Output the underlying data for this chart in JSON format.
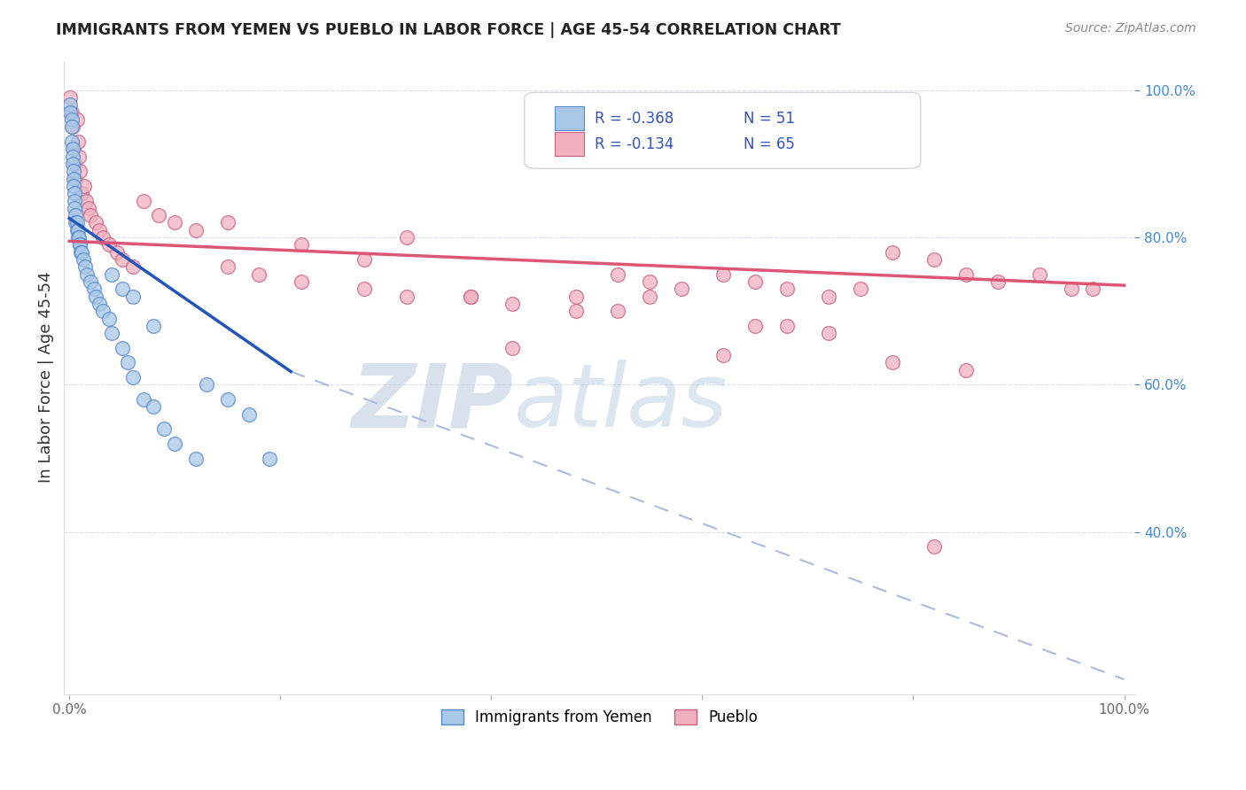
{
  "title": "IMMIGRANTS FROM YEMEN VS PUEBLO IN LABOR FORCE | AGE 45-54 CORRELATION CHART",
  "source": "Source: ZipAtlas.com",
  "ylabel": "In Labor Force | Age 45-54",
  "xlim": [
    -0.005,
    1.01
  ],
  "ylim": [
    0.18,
    1.04
  ],
  "xtick_positions": [
    0.0,
    0.2,
    0.4,
    0.6,
    0.8,
    1.0
  ],
  "xticklabels": [
    "0.0%",
    "",
    "",
    "",
    "",
    "100.0%"
  ],
  "ytick_right_positions": [
    0.4,
    0.6,
    0.8,
    1.0
  ],
  "ytick_right_labels": [
    "40.0%",
    "60.0%",
    "80.0%",
    "100.0%"
  ],
  "legend_line1": "R = -0.368   N = 51",
  "legend_line2": "R = -0.134   N = 65",
  "color_yemen_fill": "#a8c8e8",
  "color_yemen_edge": "#5588cc",
  "color_pueblo_fill": "#f0b0c0",
  "color_pueblo_edge": "#cc6080",
  "color_yemen_line": "#2255bb",
  "color_pueblo_line": "#dd5577",
  "color_dashed": "#aabbdd",
  "background_color": "#ffffff",
  "watermark_text": "ZIPatlas",
  "watermark_color": "#ccd8e8",
  "grid_color": "#ddddee",
  "yemen_x": [
    0.001,
    0.001,
    0.002,
    0.002,
    0.002,
    0.003,
    0.003,
    0.003,
    0.004,
    0.004,
    0.004,
    0.005,
    0.005,
    0.005,
    0.006,
    0.006,
    0.007,
    0.007,
    0.008,
    0.008,
    0.009,
    0.01,
    0.01,
    0.011,
    0.012,
    0.013,
    0.015,
    0.017,
    0.02,
    0.023,
    0.025,
    0.028,
    0.032,
    0.038,
    0.04,
    0.05,
    0.055,
    0.06,
    0.07,
    0.08,
    0.09,
    0.1,
    0.12,
    0.13,
    0.15,
    0.17,
    0.19,
    0.04,
    0.05,
    0.06,
    0.08
  ],
  "yemen_y": [
    0.98,
    0.97,
    0.96,
    0.95,
    0.93,
    0.92,
    0.91,
    0.9,
    0.89,
    0.88,
    0.87,
    0.86,
    0.85,
    0.84,
    0.83,
    0.82,
    0.82,
    0.81,
    0.81,
    0.8,
    0.8,
    0.79,
    0.79,
    0.78,
    0.78,
    0.77,
    0.76,
    0.75,
    0.74,
    0.73,
    0.72,
    0.71,
    0.7,
    0.69,
    0.67,
    0.65,
    0.63,
    0.61,
    0.58,
    0.57,
    0.54,
    0.52,
    0.5,
    0.6,
    0.58,
    0.56,
    0.5,
    0.75,
    0.73,
    0.72,
    0.68
  ],
  "pueblo_x": [
    0.001,
    0.002,
    0.003,
    0.004,
    0.005,
    0.006,
    0.007,
    0.008,
    0.009,
    0.01,
    0.012,
    0.014,
    0.016,
    0.018,
    0.02,
    0.025,
    0.028,
    0.032,
    0.038,
    0.045,
    0.05,
    0.06,
    0.07,
    0.085,
    0.1,
    0.12,
    0.15,
    0.18,
    0.22,
    0.28,
    0.32,
    0.38,
    0.42,
    0.48,
    0.52,
    0.55,
    0.58,
    0.62,
    0.65,
    0.68,
    0.72,
    0.75,
    0.78,
    0.82,
    0.85,
    0.88,
    0.92,
    0.95,
    0.97,
    0.42,
    0.62,
    0.78,
    0.85,
    0.65,
    0.72,
    0.52,
    0.28,
    0.38,
    0.55,
    0.68,
    0.82,
    0.32,
    0.15,
    0.22,
    0.48
  ],
  "pueblo_y": [
    0.99,
    0.97,
    0.95,
    0.92,
    0.9,
    0.88,
    0.96,
    0.93,
    0.91,
    0.89,
    0.86,
    0.87,
    0.85,
    0.84,
    0.83,
    0.82,
    0.81,
    0.8,
    0.79,
    0.78,
    0.77,
    0.76,
    0.85,
    0.83,
    0.82,
    0.81,
    0.76,
    0.75,
    0.74,
    0.73,
    0.72,
    0.72,
    0.71,
    0.7,
    0.75,
    0.74,
    0.73,
    0.75,
    0.74,
    0.73,
    0.72,
    0.73,
    0.78,
    0.77,
    0.75,
    0.74,
    0.75,
    0.73,
    0.73,
    0.65,
    0.64,
    0.63,
    0.62,
    0.68,
    0.67,
    0.7,
    0.77,
    0.72,
    0.72,
    0.68,
    0.38,
    0.8,
    0.82,
    0.79,
    0.72
  ],
  "yemen_line_x0": 0.0,
  "yemen_line_y0": 0.826,
  "yemen_line_x1": 0.21,
  "yemen_line_y1": 0.618,
  "dashed_line_x0": 0.21,
  "dashed_line_y0": 0.618,
  "dashed_line_x1": 1.0,
  "dashed_line_y1": 0.2,
  "pueblo_line_x0": 0.0,
  "pueblo_line_y0": 0.795,
  "pueblo_line_x1": 1.0,
  "pueblo_line_y1": 0.735
}
